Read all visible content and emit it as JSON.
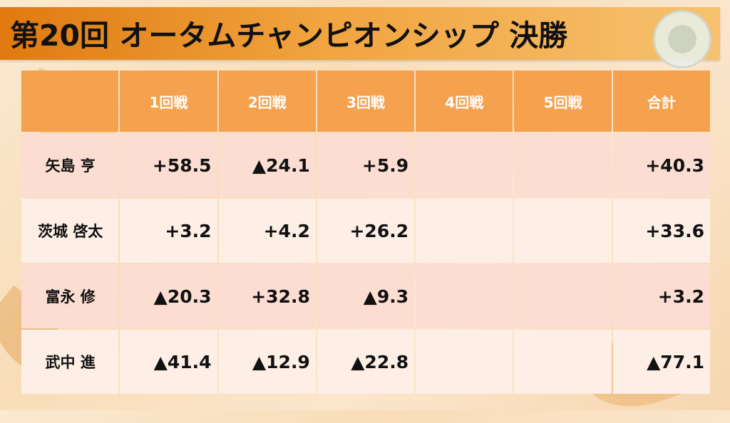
{
  "title": "第20回 オータムチャンピオンシップ 決勝",
  "columns": [
    "",
    "1回戦",
    "2回戦",
    "3回戦",
    "4回戦",
    "5回戦",
    "合計"
  ],
  "rows": [
    {
      "name": "矢島 亨",
      "scores": [
        "+58.5",
        "▲24.1",
        "+5.9",
        "",
        ""
      ],
      "total": "+40.3"
    },
    {
      "name": "茨城 啓太",
      "scores": [
        "+3.2",
        "+4.2",
        "+26.2",
        "",
        ""
      ],
      "total": "+33.6"
    },
    {
      "name": "富永 修",
      "scores": [
        "▲20.3",
        "+32.8",
        "▲9.3",
        "",
        ""
      ],
      "total": "+3.2"
    },
    {
      "name": "武中 進",
      "scores": [
        "▲41.4",
        "▲12.9",
        "▲22.8",
        "",
        ""
      ],
      "total": "▲77.1"
    }
  ],
  "colors": {
    "header": "#f5a14e",
    "row_odd": "#fcddd2",
    "row_even": "#fdeee6",
    "title_bar": "#e07a10"
  }
}
